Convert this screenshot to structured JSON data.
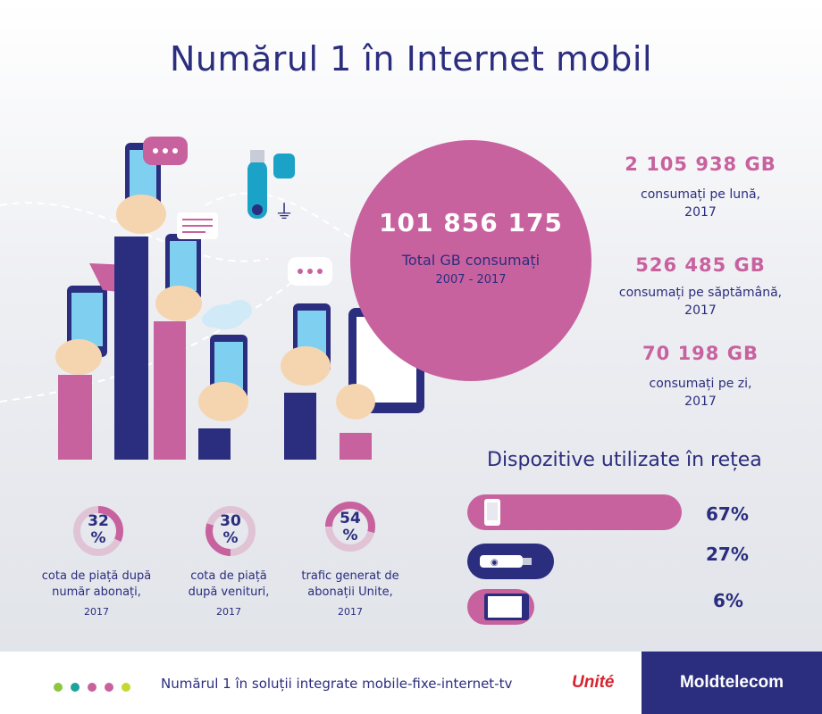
{
  "title": "Numărul 1 în Internet mobil",
  "total": {
    "value": "101 856 175",
    "label": "Total GB consumați",
    "years": "2007 - 2017"
  },
  "stats": [
    {
      "value": "2 105 938 GB",
      "label_line1": "consumați pe lună,",
      "label_line2": "2017"
    },
    {
      "value": "526 485 GB",
      "label_line1": "consumați pe săptămână,",
      "label_line2": "2017"
    },
    {
      "value": "70 198 GB",
      "label_line1": "consumați pe zi,",
      "label_line2": "2017"
    }
  ],
  "devices": {
    "title": "Dispozitive utilizate în rețea",
    "items": [
      {
        "icon": "smartphone-icon",
        "percent": "67%",
        "share": 0.67,
        "color": "#c8629f"
      },
      {
        "icon": "usb-modem-icon",
        "percent": "27%",
        "share": 0.27,
        "color": "#2b2d7e"
      },
      {
        "icon": "tablet-icon",
        "percent": "6%",
        "share": 0.06,
        "color": "#c8629f"
      }
    ]
  },
  "shares": [
    {
      "pct_number": "32",
      "pct_sign": "%",
      "share": 0.32,
      "line1": "cota de piață după",
      "line2": "număr abonați,",
      "year": "2017"
    },
    {
      "pct_number": "30",
      "pct_sign": "%",
      "share": 0.3,
      "line1": "cota de piață",
      "line2": "după venituri,",
      "year": "2017"
    },
    {
      "pct_number": "54",
      "pct_sign": "%",
      "share": 0.54,
      "line1": "trafic generat de",
      "line2": "abonații Unite,",
      "year": "2017"
    }
  ],
  "footer": {
    "dot_colors": [
      "#8dc63f",
      "#1ba39c",
      "#c8629f",
      "#c8629f",
      "#c5d82f"
    ],
    "text": "Numărul 1 în soluții integrate mobile-fixe-internet-tv",
    "unite": "Unité",
    "moldtelecom": "Moldtelecom"
  },
  "colors": {
    "navy": "#2b2d7e",
    "pink": "#c8629f",
    "light_blue": "#7fd0f0",
    "skin": "#f5d5b0"
  }
}
